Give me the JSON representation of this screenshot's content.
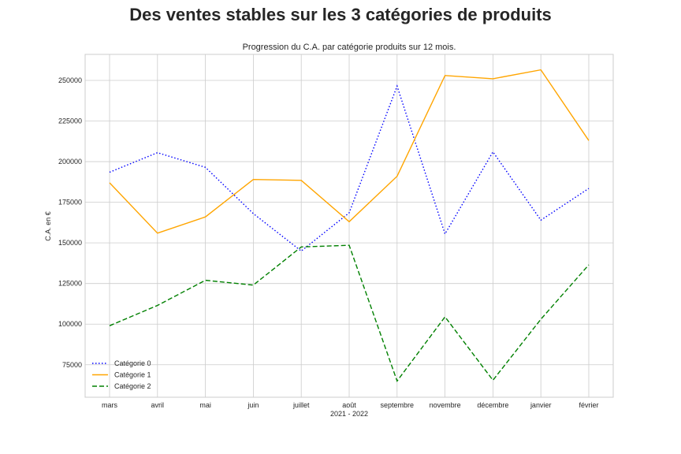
{
  "suptitle": "Des ventes stables sur les 3 catégories de produits",
  "chart_data": {
    "type": "line",
    "title": "Progression du C.A. par catégorie produits sur 12 mois.",
    "xlabel": "2021 - 2022",
    "ylabel": "C.A. en €",
    "categories": [
      "mars",
      "avril",
      "mai",
      "juin",
      "juillet",
      "août",
      "septembre",
      "novembre",
      "décembre",
      "janvier",
      "février"
    ],
    "ylim": [
      55000,
      266000
    ],
    "yticks": [
      75000,
      100000,
      125000,
      150000,
      175000,
      200000,
      225000,
      250000
    ],
    "grid": true,
    "legend_position": "lower-left",
    "series": [
      {
        "name": "Catégorie 0",
        "color": "#0000ff",
        "style": "dotted",
        "values": [
          193500,
          205500,
          196500,
          168000,
          145000,
          168500,
          246500,
          155500,
          206000,
          164000,
          183500
        ]
      },
      {
        "name": "Catégorie 1",
        "color": "#ffa500",
        "style": "solid",
        "values": [
          187000,
          156000,
          166000,
          189000,
          188500,
          163000,
          191000,
          253000,
          251000,
          256500,
          213000
        ]
      },
      {
        "name": "Catégorie 2",
        "color": "#008000",
        "style": "dashed",
        "values": [
          99000,
          111500,
          127000,
          124000,
          147500,
          148500,
          65000,
          104500,
          65500,
          103000,
          136500
        ]
      }
    ]
  }
}
